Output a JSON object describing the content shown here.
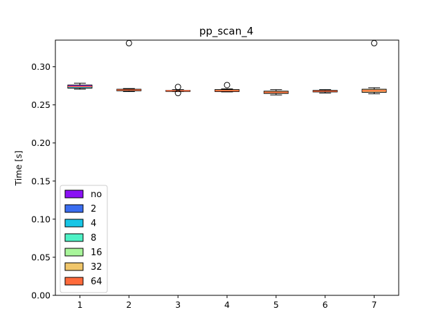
{
  "chart_data": {
    "type": "box",
    "title": "pp_scan_4",
    "xlabel": "",
    "ylabel": "Time [s]",
    "xlim": [
      0.5,
      7.5
    ],
    "ylim": [
      0.0,
      0.335
    ],
    "yticks": [
      "0.00",
      "0.05",
      "0.10",
      "0.15",
      "0.20",
      "0.25",
      "0.30"
    ],
    "yticks_values": [
      0.0,
      0.05,
      0.1,
      0.15,
      0.2,
      0.25,
      0.3
    ],
    "categories": [
      "1",
      "2",
      "3",
      "4",
      "5",
      "6",
      "7"
    ],
    "boxes": [
      {
        "x": 1,
        "whislo": 0.2705,
        "q1": 0.272,
        "med": 0.274,
        "q3": 0.276,
        "whishi": 0.2785,
        "fliers": [],
        "color": "#ffffff"
      },
      {
        "x": 2,
        "whislo": 0.2675,
        "q1": 0.2685,
        "med": 0.2695,
        "q3": 0.2705,
        "whishi": 0.2715,
        "fliers": [
          0.331
        ],
        "color": "#f4c070"
      },
      {
        "x": 3,
        "whislo": 0.2675,
        "q1": 0.268,
        "med": 0.2685,
        "q3": 0.269,
        "whishi": 0.27,
        "fliers": [
          0.2735,
          0.2655
        ],
        "color": "#f4c070"
      },
      {
        "x": 4,
        "whislo": 0.267,
        "q1": 0.2675,
        "med": 0.2685,
        "q3": 0.27,
        "whishi": 0.271,
        "fliers": [
          0.276
        ],
        "color": "#f4c070"
      },
      {
        "x": 5,
        "whislo": 0.263,
        "q1": 0.265,
        "med": 0.2665,
        "q3": 0.268,
        "whishi": 0.27,
        "fliers": [],
        "color": "#f4c070"
      },
      {
        "x": 6,
        "whislo": 0.2655,
        "q1": 0.267,
        "med": 0.268,
        "q3": 0.269,
        "whishi": 0.27,
        "fliers": [],
        "color": "#f4c070"
      },
      {
        "x": 7,
        "whislo": 0.2645,
        "q1": 0.2665,
        "med": 0.2685,
        "q3": 0.2705,
        "whishi": 0.2725,
        "fliers": [
          0.331
        ],
        "color": "#f4c070"
      }
    ],
    "box1_stack_colors": [
      "#8a10f5",
      "#3a6df0",
      "#22c4e6"
    ],
    "box_edge_color": "#000000",
    "median_color": "#ff6a3b",
    "legend": {
      "placement": "lower-left",
      "entries": [
        {
          "label": "no",
          "color": "#8a10f5"
        },
        {
          "label": "2",
          "color": "#3a6df0"
        },
        {
          "label": "4",
          "color": "#18c6e6"
        },
        {
          "label": "8",
          "color": "#4ef2c6"
        },
        {
          "label": "16",
          "color": "#a8f59a"
        },
        {
          "label": "32",
          "color": "#f0c66a"
        },
        {
          "label": "64",
          "color": "#ff6a3b"
        }
      ]
    },
    "grid": false
  }
}
